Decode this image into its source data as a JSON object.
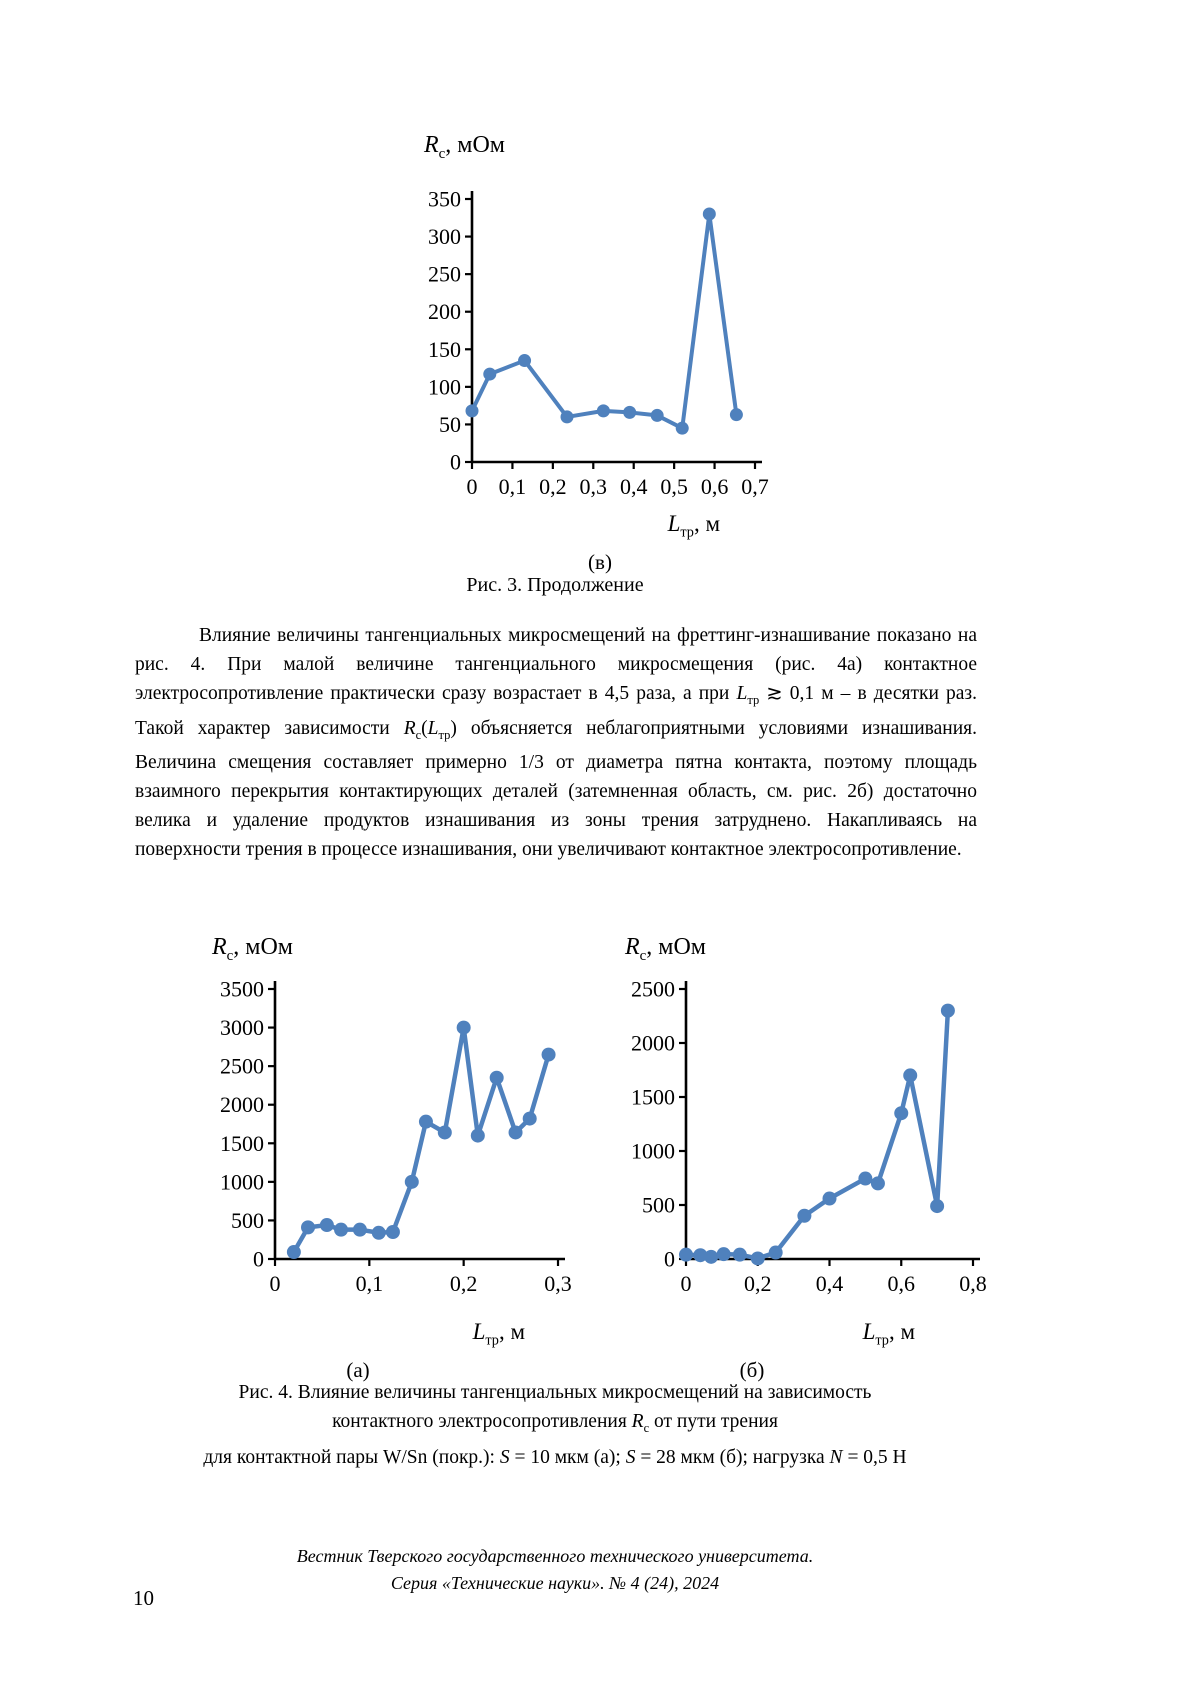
{
  "accent_color": "#4f81bd",
  "figure3": {
    "y_axis_title": [
      {
        "i": "R",
        "sub": "c"
      },
      {
        "t": ", мОм"
      }
    ],
    "x_axis_title": [
      {
        "i": "L",
        "sub": "тр"
      },
      {
        "t": ", м"
      }
    ],
    "panel_label": "(в)",
    "caption": "Рис. 3. Продолжение"
  },
  "paragraph": {
    "segments": [
      {
        "t": "Влияние величины тангенциальных микросмещений на фреттинг-изнашивание показано на рис. 4. При малой величине тангенциального микросмещения (рис. 4а) контактное электросопротивление практически сразу возрастает в 4,5 раза, а при "
      },
      {
        "i": "L",
        "sub": "тр"
      },
      {
        "t": " ≳ 0,1 м – в десятки раз. Такой характер зависимости "
      },
      {
        "i": "R",
        "sub": "c"
      },
      {
        "t": "("
      },
      {
        "i": "L",
        "sub": "тр"
      },
      {
        "t": ") объясняется неблагоприятными условиями изнашивания. Величина смещения составляет примерно 1/3 от диаметра пятна контакта, поэтому площадь взаимного перекрытия контактирующих деталей (затемненная область, см. рис. 2б) достаточно велика и удаление продуктов изнашивания из зоны трения затруднено. Накапливаясь на поверхности трения в процессе изнашивания, они увеличивают контактное электросопротивление."
      }
    ]
  },
  "figure4": {
    "a_y_axis_title": [
      {
        "i": "R",
        "sub": "c"
      },
      {
        "t": ", мОм"
      }
    ],
    "a_x_axis_title": [
      {
        "i": "L",
        "sub": "тр"
      },
      {
        "t": ", м"
      }
    ],
    "b_y_axis_title": [
      {
        "i": "R",
        "sub": "c"
      },
      {
        "t": ", мОм"
      }
    ],
    "b_x_axis_title": [
      {
        "i": "L",
        "sub": "тр"
      },
      {
        "t": ", м"
      }
    ],
    "panel_a_label": "(а)",
    "panel_b_label": "(б)",
    "caption_line1": [
      {
        "t": "Рис. 4. Влияние величины тангенциальных микросмещений на зависимость"
      }
    ],
    "caption_line2": [
      {
        "t": "контактного электросопротивления "
      },
      {
        "i": "R",
        "sub": "c"
      },
      {
        "t": " от пути трения"
      }
    ],
    "caption_line3": [
      {
        "t": "для контактной пары W/Sn (покр.): "
      },
      {
        "i": "S"
      },
      {
        "t": " = 10 мкм (а); "
      },
      {
        "i": "S"
      },
      {
        "t": " = 28 мкм (б); нагрузка "
      },
      {
        "i": "N"
      },
      {
        "t": " = 0,5 Н"
      }
    ]
  },
  "footer": {
    "line1": "Вестник Тверского государственного технического университета.",
    "line2": "Серия «Технические науки». № 4 (24), 2024",
    "page_number": "10"
  },
  "chart_data": [
    {
      "panel": "в",
      "type": "line",
      "title": "Rc, мОм",
      "ylabel": "Rc, мОм",
      "xlabel": "Lтр, м",
      "x": [
        0,
        0.044,
        0.13,
        0.235,
        0.325,
        0.39,
        0.458,
        0.52,
        0.587,
        0.654
      ],
      "y": [
        68,
        117,
        135,
        60,
        68,
        66,
        62,
        45,
        330,
        63
      ],
      "xlim": [
        0,
        0.7
      ],
      "ylim": [
        0,
        350
      ],
      "xticks": [
        0,
        0.1,
        0.2,
        0.3,
        0.4,
        0.5,
        0.6,
        0.7
      ],
      "yticks": [
        0,
        50,
        100,
        150,
        200,
        250,
        300,
        350
      ],
      "grid": false,
      "legend": null,
      "marker": "circle",
      "color": "#4f81bd",
      "decimal_comma": true
    },
    {
      "panel": "а",
      "type": "line",
      "title": "Rc, мОм",
      "ylabel": "Rc, мОм",
      "xlabel": "Lтр, м",
      "x": [
        0.02,
        0.035,
        0.055,
        0.07,
        0.09,
        0.11,
        0.125,
        0.145,
        0.16,
        0.18,
        0.2,
        0.215,
        0.235,
        0.255,
        0.27,
        0.29
      ],
      "y": [
        90,
        410,
        440,
        380,
        380,
        340,
        350,
        1000,
        1780,
        1640,
        3000,
        1600,
        2350,
        1640,
        1820,
        2650
      ],
      "xlim": [
        0,
        0.3
      ],
      "ylim": [
        0,
        3500
      ],
      "xticks": [
        0,
        0.1,
        0.2,
        0.3
      ],
      "yticks": [
        0,
        500,
        1000,
        1500,
        2000,
        2500,
        3000,
        3500
      ],
      "grid": false,
      "legend": null,
      "marker": "circle",
      "color": "#4f81bd",
      "decimal_comma": true
    },
    {
      "panel": "б",
      "type": "line",
      "title": "Rc, мОм",
      "ylabel": "Rc, мОм",
      "xlabel": "Lтр, м",
      "x": [
        0,
        0.04,
        0.07,
        0.105,
        0.15,
        0.2,
        0.25,
        0.33,
        0.4,
        0.5,
        0.535,
        0.6,
        0.625,
        0.7,
        0.73
      ],
      "y": [
        40,
        35,
        20,
        45,
        40,
        5,
        60,
        400,
        560,
        745,
        700,
        1350,
        1700,
        490,
        2300
      ],
      "xlim": [
        0,
        0.8
      ],
      "ylim": [
        0,
        2500
      ],
      "xticks": [
        0,
        0.2,
        0.4,
        0.6,
        0.8
      ],
      "yticks": [
        0,
        500,
        1000,
        1500,
        2000,
        2500
      ],
      "grid": false,
      "legend": null,
      "marker": "circle",
      "color": "#4f81bd",
      "decimal_comma": true
    }
  ]
}
